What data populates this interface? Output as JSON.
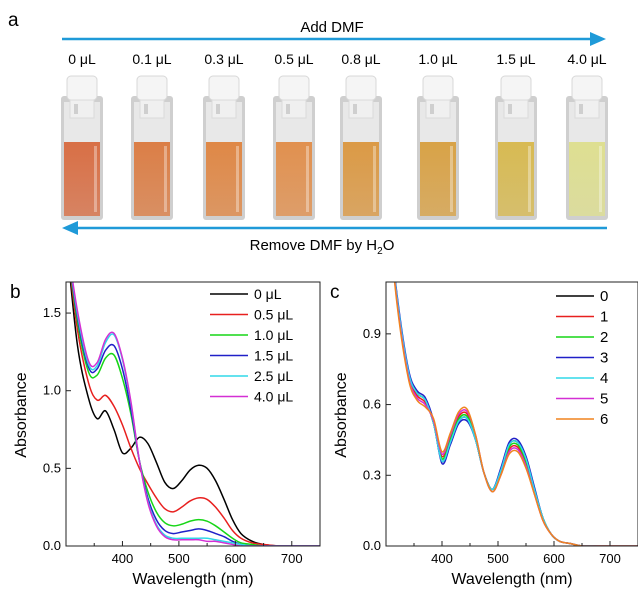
{
  "panel_a": {
    "letter": "a",
    "top_arrow_label": "Add DMF",
    "bottom_arrow_label_main": "Remove DMF by H",
    "bottom_arrow_label_sub": "2",
    "bottom_arrow_label_end": "O",
    "vial_labels": [
      "0 μL",
      "0.1 μL",
      "0.3 μL",
      "0.5 μL",
      "0.8 μL",
      "1.0 μL",
      "1.5 μL",
      "4.0 μL"
    ],
    "vial_colors": [
      "#d96a3e",
      "#dc7a3f",
      "#e0843f",
      "#e28d48",
      "#dc973e",
      "#d9a040",
      "#d8b94c",
      "#dfe08e"
    ],
    "arrow_color": "#1f9ad8"
  },
  "chart_data": [
    {
      "type": "line",
      "panel": "b",
      "title": "",
      "xlabel": "Wavelength (nm)",
      "ylabel": "Absorbance",
      "xlim": [
        300,
        750
      ],
      "ylim": [
        0,
        1.7
      ],
      "xticks": [
        400,
        500,
        600,
        700
      ],
      "yticks": [
        0.0,
        0.5,
        1.0,
        1.5
      ],
      "ytick_labels": [
        "0.0",
        "0.5",
        "1.0",
        "1.5"
      ],
      "legend_position": "top-right",
      "x": [
        300,
        320,
        340,
        355,
        370,
        385,
        400,
        415,
        430,
        445,
        460,
        475,
        490,
        505,
        520,
        535,
        550,
        565,
        580,
        595,
        610,
        630,
        650,
        680,
        720,
        750
      ],
      "series": [
        {
          "name": "0 μL",
          "color": "#000000",
          "values": [
            2.0,
            1.3,
            0.95,
            0.82,
            0.87,
            0.75,
            0.6,
            0.63,
            0.7,
            0.66,
            0.54,
            0.41,
            0.37,
            0.42,
            0.49,
            0.52,
            0.5,
            0.42,
            0.3,
            0.17,
            0.08,
            0.03,
            0.01,
            0.0,
            0.0,
            0.0
          ]
        },
        {
          "name": "0.5 μL",
          "color": "#e8201f",
          "values": [
            2.0,
            1.4,
            1.05,
            0.94,
            0.97,
            0.9,
            0.78,
            0.63,
            0.5,
            0.4,
            0.31,
            0.24,
            0.22,
            0.25,
            0.29,
            0.31,
            0.3,
            0.25,
            0.18,
            0.1,
            0.05,
            0.02,
            0.01,
            0.0,
            0.0,
            0.0
          ]
        },
        {
          "name": "1.0 μL",
          "color": "#17d617",
          "values": [
            2.0,
            1.45,
            1.12,
            1.1,
            1.21,
            1.23,
            1.08,
            0.85,
            0.55,
            0.35,
            0.22,
            0.15,
            0.13,
            0.14,
            0.16,
            0.17,
            0.16,
            0.13,
            0.09,
            0.05,
            0.02,
            0.01,
            0.0,
            0.0,
            0.0,
            0.0
          ]
        },
        {
          "name": "1.5 μL",
          "color": "#2020c8",
          "values": [
            2.0,
            1.48,
            1.15,
            1.14,
            1.26,
            1.29,
            1.14,
            0.88,
            0.55,
            0.31,
            0.17,
            0.1,
            0.08,
            0.09,
            0.1,
            0.11,
            0.1,
            0.08,
            0.06,
            0.03,
            0.01,
            0.0,
            0.0,
            0.0,
            0.0,
            0.0
          ]
        },
        {
          "name": "2.5 μL",
          "color": "#30d8e8",
          "values": [
            2.0,
            1.5,
            1.17,
            1.16,
            1.31,
            1.36,
            1.2,
            0.92,
            0.55,
            0.29,
            0.14,
            0.07,
            0.05,
            0.05,
            0.05,
            0.05,
            0.05,
            0.04,
            0.03,
            0.02,
            0.01,
            0.0,
            0.0,
            0.0,
            0.0,
            0.0
          ]
        },
        {
          "name": "4.0 μL",
          "color": "#d42fd4",
          "values": [
            2.0,
            1.52,
            1.19,
            1.18,
            1.33,
            1.37,
            1.21,
            0.93,
            0.55,
            0.28,
            0.13,
            0.06,
            0.04,
            0.04,
            0.04,
            0.04,
            0.03,
            0.03,
            0.02,
            0.01,
            0.0,
            0.0,
            0.0,
            0.0,
            0.0,
            0.0
          ]
        }
      ]
    },
    {
      "type": "line",
      "panel": "c",
      "title": "",
      "xlabel": "Wavelength (nm)",
      "ylabel": "Absorbance",
      "xlim": [
        300,
        750
      ],
      "ylim": [
        0,
        1.12
      ],
      "xticks": [
        400,
        500,
        600,
        700
      ],
      "yticks": [
        0.0,
        0.3,
        0.6,
        0.9
      ],
      "ytick_labels": [
        "0.0",
        "0.3",
        "0.6",
        "0.9"
      ],
      "legend_position": "top-right",
      "x": [
        300,
        320,
        340,
        355,
        370,
        385,
        400,
        415,
        430,
        445,
        460,
        475,
        490,
        505,
        520,
        535,
        550,
        565,
        580,
        595,
        610,
        630,
        650,
        680,
        720,
        750
      ],
      "series": [
        {
          "name": "0",
          "color": "#000000",
          "values": [
            1.5,
            1.05,
            0.74,
            0.65,
            0.62,
            0.52,
            0.36,
            0.44,
            0.53,
            0.54,
            0.45,
            0.31,
            0.24,
            0.32,
            0.43,
            0.44,
            0.37,
            0.24,
            0.12,
            0.05,
            0.02,
            0.01,
            0.0,
            0.0,
            0.0,
            0.0
          ]
        },
        {
          "name": "1",
          "color": "#e8201f",
          "values": [
            1.5,
            1.04,
            0.73,
            0.64,
            0.61,
            0.53,
            0.38,
            0.46,
            0.55,
            0.56,
            0.46,
            0.31,
            0.24,
            0.31,
            0.41,
            0.42,
            0.35,
            0.23,
            0.11,
            0.05,
            0.02,
            0.01,
            0.0,
            0.0,
            0.0,
            0.0
          ]
        },
        {
          "name": "2",
          "color": "#17d617",
          "values": [
            1.5,
            1.05,
            0.74,
            0.65,
            0.62,
            0.52,
            0.37,
            0.45,
            0.54,
            0.55,
            0.46,
            0.31,
            0.24,
            0.32,
            0.42,
            0.43,
            0.36,
            0.24,
            0.12,
            0.05,
            0.02,
            0.01,
            0.0,
            0.0,
            0.0,
            0.0
          ]
        },
        {
          "name": "3",
          "color": "#2020c8",
          "values": [
            1.5,
            1.06,
            0.75,
            0.66,
            0.63,
            0.53,
            0.35,
            0.43,
            0.52,
            0.53,
            0.45,
            0.31,
            0.24,
            0.33,
            0.44,
            0.45,
            0.38,
            0.25,
            0.12,
            0.05,
            0.02,
            0.01,
            0.0,
            0.0,
            0.0,
            0.0
          ]
        },
        {
          "name": "4",
          "color": "#30d8e8",
          "values": [
            1.5,
            1.05,
            0.74,
            0.65,
            0.62,
            0.52,
            0.36,
            0.44,
            0.53,
            0.54,
            0.45,
            0.31,
            0.24,
            0.32,
            0.43,
            0.44,
            0.37,
            0.24,
            0.12,
            0.05,
            0.02,
            0.01,
            0.0,
            0.0,
            0.0,
            0.0
          ]
        },
        {
          "name": "5",
          "color": "#d42fd4",
          "values": [
            1.5,
            1.03,
            0.72,
            0.63,
            0.6,
            0.53,
            0.39,
            0.47,
            0.56,
            0.57,
            0.47,
            0.31,
            0.23,
            0.3,
            0.4,
            0.41,
            0.34,
            0.22,
            0.11,
            0.05,
            0.02,
            0.01,
            0.0,
            0.0,
            0.0,
            0.0
          ]
        },
        {
          "name": "6",
          "color": "#f0841f",
          "values": [
            1.5,
            1.02,
            0.71,
            0.62,
            0.59,
            0.54,
            0.4,
            0.48,
            0.57,
            0.58,
            0.47,
            0.31,
            0.23,
            0.3,
            0.39,
            0.4,
            0.33,
            0.22,
            0.11,
            0.05,
            0.02,
            0.01,
            0.0,
            0.0,
            0.0,
            0.0
          ]
        }
      ]
    }
  ]
}
